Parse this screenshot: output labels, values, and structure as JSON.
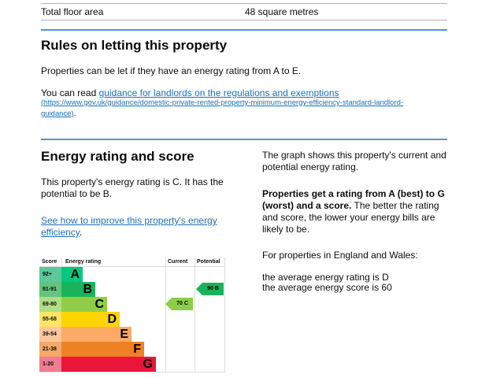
{
  "summary": {
    "floor_area_label": "Total floor area",
    "floor_area_value": "48 square metres"
  },
  "letting": {
    "heading": "Rules on letting this property",
    "para1": "Properties can be let if they have an energy rating from A to E.",
    "para2_prefix": "You can read ",
    "link_text": "guidance for landlords on the regulations and exemptions",
    "link_url_text": "(https://www.gov.uk/guidance/domestic-private-rented-property-minimum-energy-efficiency-standard-landlord-",
    "link_url_text2": "guidance)",
    "para2_suffix": "."
  },
  "energy": {
    "heading": "Energy rating and score",
    "summary": "This property's energy rating is C. It has the potential to be B.",
    "improve_link": "See how to improve this property's energy efficiency",
    "improve_suffix": ".",
    "graph_desc": "The graph shows this property's current and potential energy rating.",
    "rating_bold": "Properties get a rating from A (best) to G (worst) and a score.",
    "rating_rest": " The better the rating and score, the lower your energy bills are likely to be.",
    "region": "For properties in England and Wales:",
    "avg_rating": "the average energy rating is D",
    "avg_score": "the average energy score is 60"
  },
  "chart_data": {
    "type": "table",
    "title": "Energy rating",
    "headers": [
      "Score",
      "Energy rating",
      "Current",
      "Potential"
    ],
    "bands": [
      {
        "score": "92+",
        "letter": "A",
        "color": "#00c781",
        "score_bg": "#5cc79b",
        "width": 27
      },
      {
        "score": "81-91",
        "letter": "B",
        "color": "#19b459",
        "score_bg": "#63c47f",
        "width": 43
      },
      {
        "score": "69-80",
        "letter": "C",
        "color": "#8dce46",
        "score_bg": "#b1dd85",
        "width": 58
      },
      {
        "score": "55-68",
        "letter": "D",
        "color": "#ffd500",
        "score_bg": "#ffe566",
        "width": 74
      },
      {
        "score": "39-54",
        "letter": "E",
        "color": "#fcaa65",
        "score_bg": "#fdc79a",
        "width": 89
      },
      {
        "score": "21-38",
        "letter": "F",
        "color": "#ef8023",
        "score_bg": "#f5a86a",
        "width": 105
      },
      {
        "score": "1-20",
        "letter": "G",
        "color": "#e9153b",
        "score_bg": "#f07c8f",
        "width": 120
      }
    ],
    "current": {
      "score": 70,
      "letter": "C",
      "label": "70  C",
      "color": "#8dce46"
    },
    "potential": {
      "score": 90,
      "letter": "B",
      "label": "90  B",
      "color": "#19b459"
    }
  }
}
